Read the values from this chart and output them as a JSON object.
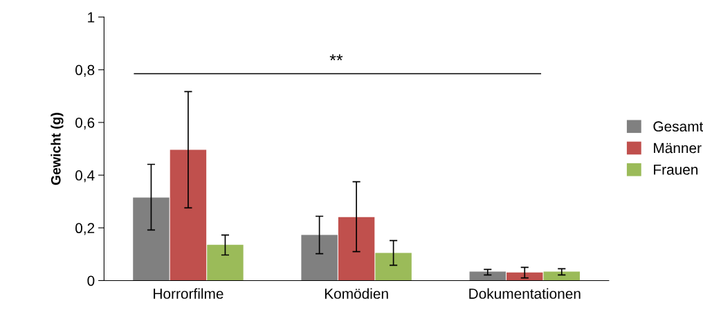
{
  "chart_data": {
    "type": "bar",
    "ylabel": "Gewicht (g)",
    "categories": [
      "Horrorfilme",
      "Komödien",
      "Dokumentationen"
    ],
    "series": [
      {
        "name": "Gesamt",
        "color": "#808080",
        "values": [
          0.315,
          0.173,
          0.034
        ],
        "errors": [
          [
            0.192,
            0.441
          ],
          [
            0.102,
            0.244
          ],
          [
            0.021,
            0.042
          ]
        ]
      },
      {
        "name": "Männer",
        "color": "#c0504d",
        "values": [
          0.496,
          0.241,
          0.031
        ],
        "errors": [
          [
            0.276,
            0.717
          ],
          [
            0.11,
            0.375
          ],
          [
            0.01,
            0.05
          ]
        ]
      },
      {
        "name": "Frauen",
        "color": "#9bbb59",
        "values": [
          0.136,
          0.105,
          0.034
        ],
        "errors": [
          [
            0.097,
            0.173
          ],
          [
            0.058,
            0.152
          ],
          [
            0.021,
            0.045
          ]
        ]
      }
    ],
    "ylim": [
      0,
      1
    ],
    "yticks": [
      0,
      {
        "value": 0.2,
        "label": "0,2"
      },
      {
        "value": 0.4,
        "label": "0,4"
      },
      {
        "value": 0.6,
        "label": "0,6"
      },
      {
        "value": 0.8,
        "label": "0,8"
      },
      1
    ],
    "grid": false,
    "legend": "right",
    "ref_lines": [
      {
        "axis": "y",
        "value": 0.785,
        "label": "**",
        "color": "#000000"
      }
    ]
  }
}
